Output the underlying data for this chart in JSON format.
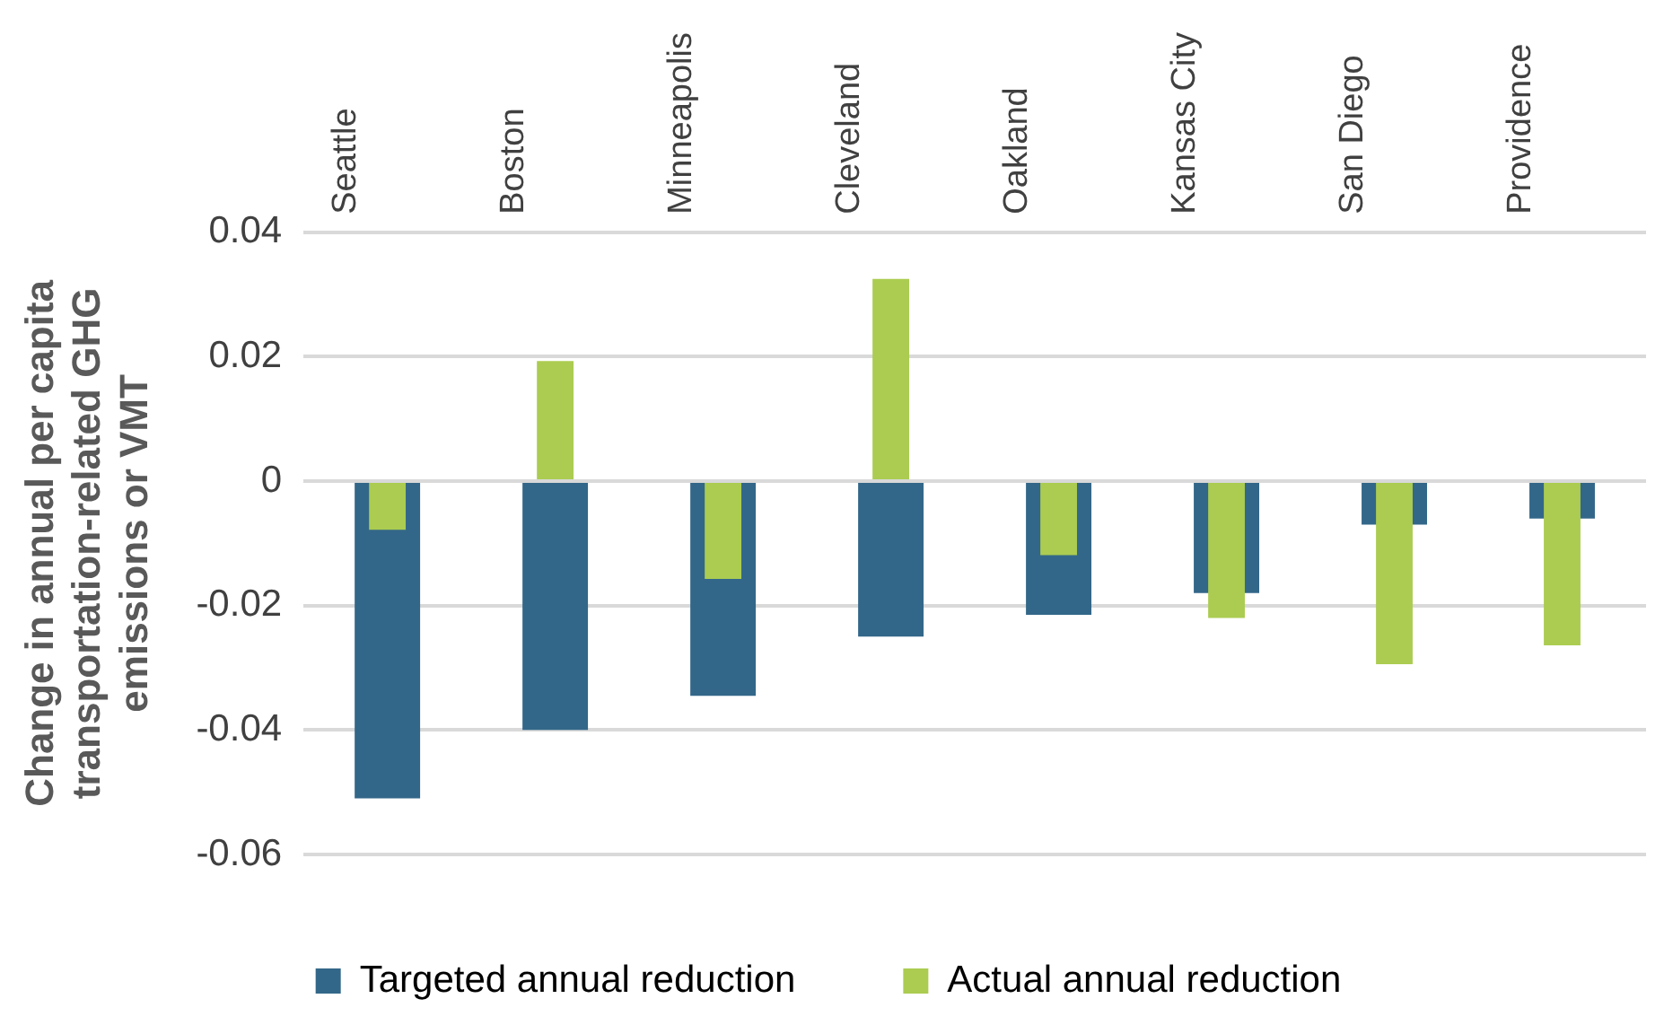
{
  "chart_data": {
    "type": "bar",
    "ylabel": "Change in annual per capita transportation-related GHG emissions or VMT",
    "categories": [
      "Seattle",
      "Boston",
      "Minneapolis",
      "Cleveland",
      "Oakland",
      "Kansas City",
      "San Diego",
      "Providence"
    ],
    "series": [
      {
        "name": "Targeted annual reduction",
        "color": "#336789",
        "values": [
          -0.051,
          -0.04,
          -0.0345,
          -0.025,
          -0.0215,
          -0.018,
          -0.007,
          -0.006
        ]
      },
      {
        "name": "Actual annual reduction",
        "color": "#abcc51",
        "values": [
          -0.0078,
          0.0193,
          -0.0157,
          0.0325,
          -0.0119,
          -0.022,
          -0.0294,
          -0.0264
        ]
      }
    ],
    "ylim": [
      -0.06,
      0.04
    ],
    "yticks": [
      -0.06,
      -0.04,
      -0.02,
      0,
      0.02,
      0.04
    ],
    "grid": "y",
    "legend": "bottom"
  }
}
